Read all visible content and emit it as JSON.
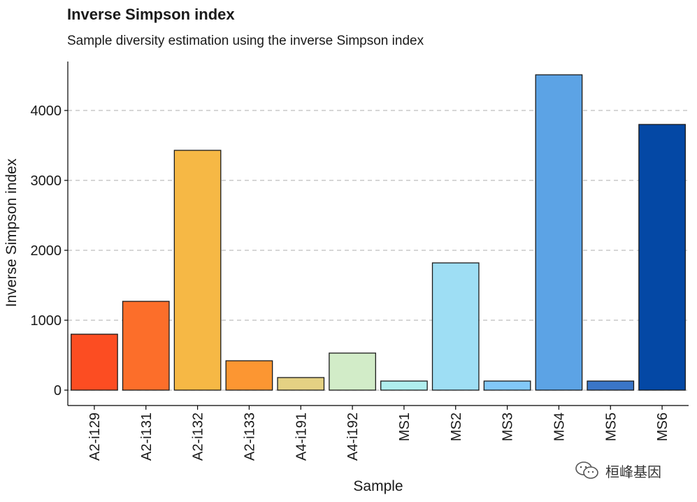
{
  "chart_data": {
    "type": "bar",
    "title": "Inverse Simpson index",
    "subtitle": "Sample diversity estimation using the inverse Simpson index",
    "xlabel": "Sample",
    "ylabel": "Inverse Simpson index",
    "ylim": [
      0,
      4750
    ],
    "yticks": [
      0,
      1000,
      2000,
      3000,
      4000
    ],
    "grid": "horizontal-dashed",
    "categories": [
      "A2-i129",
      "A2-i131",
      "A2-i132",
      "A2-i133",
      "A4-i191",
      "A4-i192",
      "MS1",
      "MS2",
      "MS3",
      "MS4",
      "MS5",
      "MS6"
    ],
    "values": [
      800,
      1270,
      3430,
      420,
      180,
      530,
      130,
      1820,
      130,
      4510,
      130,
      3800
    ],
    "colors": [
      "#fc4d22",
      "#fc6e2a",
      "#f6b845",
      "#fc9632",
      "#e4d183",
      "#d2ecc8",
      "#b0eeee",
      "#9edef4",
      "#82c8f9",
      "#5ca3e5",
      "#3a76c8",
      "#0448a5"
    ]
  },
  "watermark": {
    "icon": "wechat-icon",
    "text": "桓峰基因"
  }
}
